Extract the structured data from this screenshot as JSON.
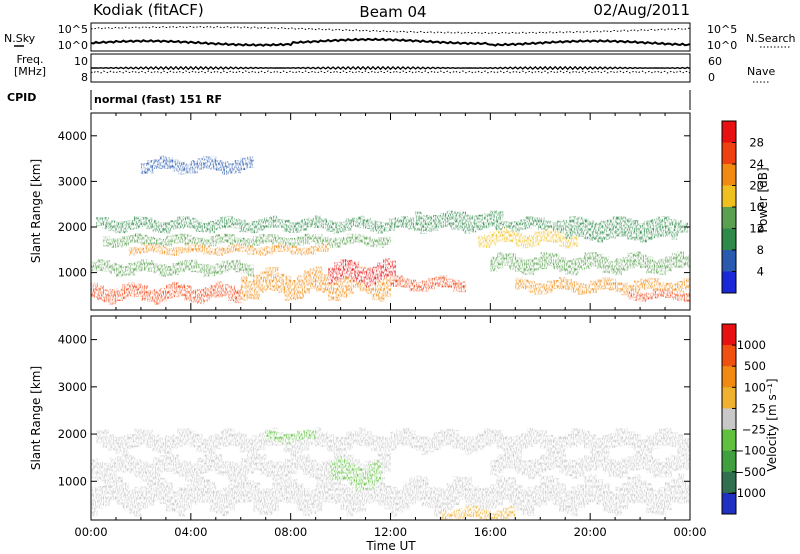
{
  "header": {
    "station": "Kodiak (fitACF)",
    "beam": "Beam 04",
    "date": "02/Aug/2011"
  },
  "strip": {
    "nsky_label": "N.Sky",
    "nsearch_label": "N.Search",
    "freq_label_line1": "Freq.",
    "freq_label_line2": "[MHz]",
    "nave_label": "Nave",
    "cpid_label": "CPID",
    "cpid_value": "normal (fast) 151 RF",
    "noise_ticks_left": [
      "10^5",
      "10^0"
    ],
    "noise_ticks_right": [
      "10^5",
      "10^0"
    ],
    "freq_ticks": [
      "10",
      "8"
    ],
    "nave_ticks": [
      "60",
      "0"
    ]
  },
  "colors": {
    "power_scale": [
      "#1a28d8",
      "#2a5ab0",
      "#2f8a4a",
      "#5aa050",
      "#f0c020",
      "#f08a10",
      "#f04010",
      "#e81010"
    ],
    "velocity_scale": [
      "#2030c0",
      "#307050",
      "#40a040",
      "#60c040",
      "#c8c8c8",
      "#f0b030",
      "#f08a10",
      "#f05010",
      "#e81010"
    ]
  },
  "chart_data": [
    {
      "type": "heatmap",
      "quantity": "Power",
      "ylabel": "Slant Range [km]",
      "ylim": [
        180,
        4500
      ],
      "xlim": [
        0,
        24
      ],
      "yticks": [
        "4000",
        "3000",
        "2000",
        "1000"
      ],
      "colorbar": {
        "label": "Power [dB]",
        "ticks": [
          "28",
          "24",
          "20",
          "16",
          "12",
          "8",
          "4"
        ],
        "range": [
          0,
          32
        ]
      },
      "features": [
        {
          "t_start": 0.2,
          "t_end": 23.9,
          "range_km": 2050,
          "width_km": 260,
          "level": 8
        },
        {
          "t_start": 0.5,
          "t_end": 12.0,
          "range_km": 1700,
          "width_km": 220,
          "level": 15
        },
        {
          "t_start": 1.5,
          "t_end": 9.5,
          "range_km": 1500,
          "width_km": 180,
          "level": 22
        },
        {
          "t_start": 0.0,
          "t_end": 6.5,
          "range_km": 1100,
          "width_km": 260,
          "level": 14
        },
        {
          "t_start": 0.0,
          "t_end": 6.0,
          "range_km": 550,
          "width_km": 330,
          "level": 24
        },
        {
          "t_start": 6.0,
          "t_end": 12.0,
          "range_km": 750,
          "width_km": 520,
          "level": 23
        },
        {
          "t_start": 9.5,
          "t_end": 12.2,
          "range_km": 1000,
          "width_km": 420,
          "level": 28
        },
        {
          "t_start": 12.0,
          "t_end": 15.0,
          "range_km": 750,
          "width_km": 250,
          "level": 26
        },
        {
          "t_start": 13.0,
          "t_end": 16.5,
          "range_km": 2200,
          "width_km": 220,
          "level": 10
        },
        {
          "t_start": 15.5,
          "t_end": 19.5,
          "range_km": 1750,
          "width_km": 300,
          "level": 18
        },
        {
          "t_start": 16.0,
          "t_end": 24.0,
          "range_km": 1200,
          "width_km": 350,
          "level": 14
        },
        {
          "t_start": 17.0,
          "t_end": 24.0,
          "range_km": 700,
          "width_km": 260,
          "level": 20
        },
        {
          "t_start": 21.5,
          "t_end": 24.0,
          "range_km": 500,
          "width_km": 180,
          "level": 27
        },
        {
          "t_start": 2.0,
          "t_end": 6.5,
          "range_km": 3350,
          "width_km": 280,
          "level": 5
        },
        {
          "t_start": 19.0,
          "t_end": 23.5,
          "range_km": 1850,
          "width_km": 250,
          "level": 9
        }
      ]
    },
    {
      "type": "heatmap",
      "quantity": "Velocity",
      "ylabel": "Slant Range [km]",
      "xlabel": "Time UT",
      "ylim": [
        180,
        4500
      ],
      "xlim": [
        0,
        24
      ],
      "xticks": [
        "00:00",
        "04:00",
        "08:00",
        "12:00",
        "16:00",
        "20:00",
        "00:00"
      ],
      "yticks": [
        "4000",
        "3000",
        "2000",
        "1000"
      ],
      "colorbar": {
        "label": "Velocity [m s⁻¹]",
        "ticks": [
          "1000",
          "500",
          "100",
          "25",
          "−25",
          "−100",
          "−500",
          "−1000"
        ]
      },
      "features": [
        {
          "t_start": 0.2,
          "t_end": 24.0,
          "range_km": 1850,
          "width_km": 380,
          "velocity": 0
        },
        {
          "t_start": 0.0,
          "t_end": 12.0,
          "range_km": 1300,
          "width_km": 420,
          "velocity": 0
        },
        {
          "t_start": 0.0,
          "t_end": 24.0,
          "range_km": 700,
          "width_km": 600,
          "velocity": 0
        },
        {
          "t_start": 9.6,
          "t_end": 11.6,
          "range_km": 1150,
          "width_km": 500,
          "velocity": 60
        },
        {
          "t_start": 7.0,
          "t_end": 9.0,
          "range_km": 1950,
          "width_km": 200,
          "velocity": 60
        },
        {
          "t_start": 14.0,
          "t_end": 17.0,
          "range_km": 300,
          "width_km": 250,
          "velocity": -60
        },
        {
          "t_start": 16.0,
          "t_end": 24.0,
          "range_km": 1350,
          "width_km": 400,
          "velocity": 0
        }
      ]
    }
  ]
}
